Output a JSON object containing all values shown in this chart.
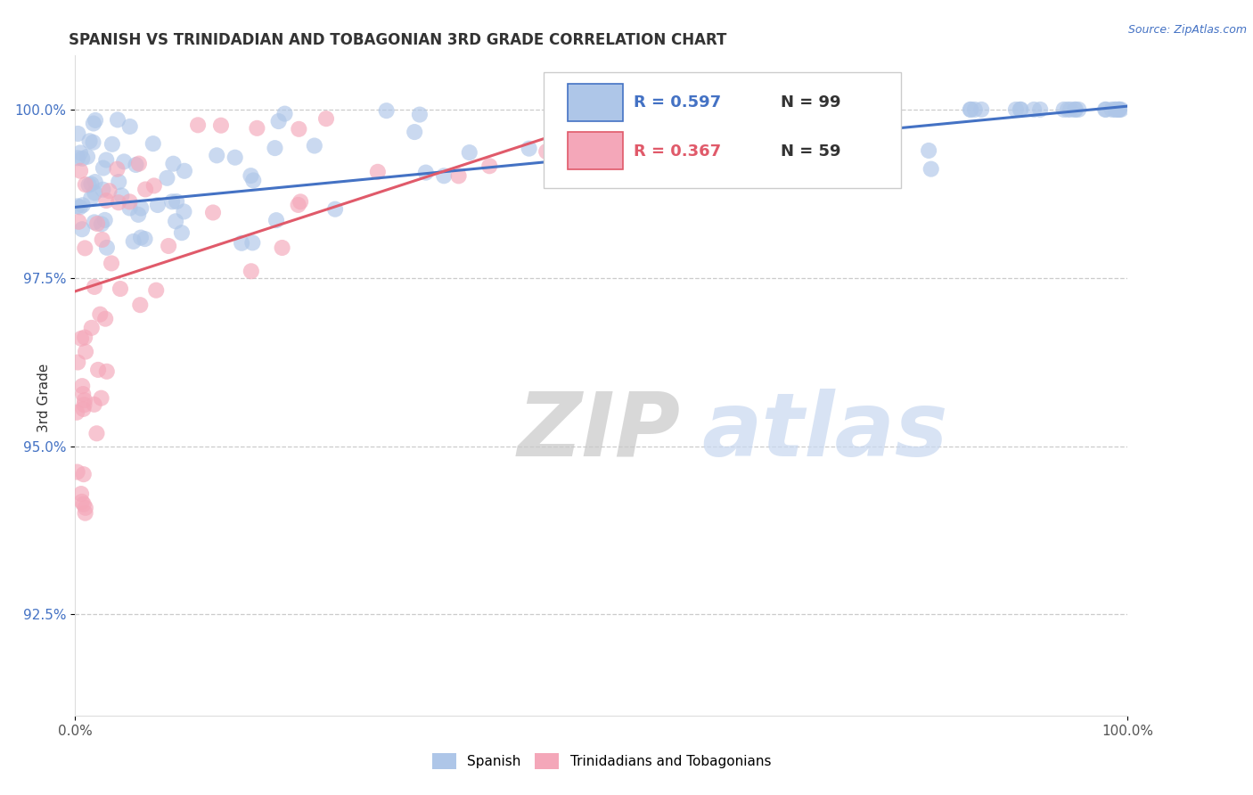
{
  "title": "SPANISH VS TRINIDADIAN AND TOBAGONIAN 3RD GRADE CORRELATION CHART",
  "source": "Source: ZipAtlas.com",
  "ylabel": "3rd Grade",
  "ytick_values": [
    92.5,
    95.0,
    97.5,
    100.0
  ],
  "ytick_labels": [
    "92.5%",
    "95.0%",
    "97.5%",
    "100.0%"
  ],
  "xlim": [
    0.0,
    100.0
  ],
  "ylim": [
    91.0,
    100.8
  ],
  "legend_spanish_R": "R = 0.597",
  "legend_spanish_N": "N = 99",
  "legend_trint_R": "R = 0.367",
  "legend_trint_N": "N = 59",
  "spanish_color": "#aec6e8",
  "trint_color": "#f4a7b9",
  "spanish_line_color": "#4472c4",
  "trint_line_color": "#e05a6a",
  "background_color": "#ffffff",
  "sp_line_x0": 0,
  "sp_line_y0": 98.55,
  "sp_line_x1": 100,
  "sp_line_y1": 100.05,
  "tr_line_x0": 0,
  "tr_line_y0": 97.3,
  "tr_line_x1": 55,
  "tr_line_y1": 100.1
}
